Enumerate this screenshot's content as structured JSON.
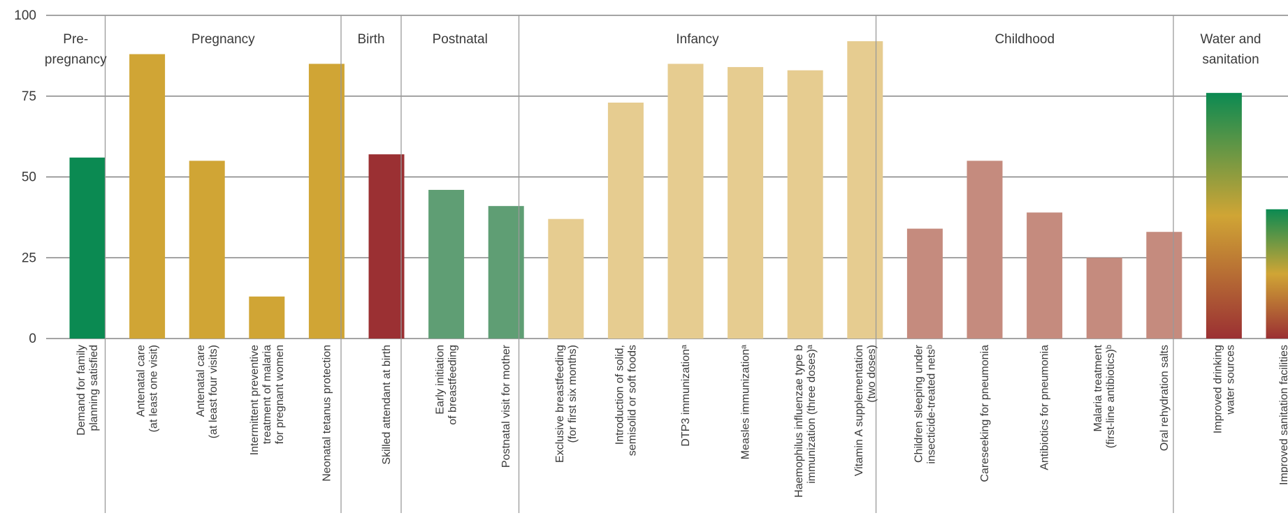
{
  "chart_data": {
    "type": "bar",
    "y_ticks": [
      "100",
      "75",
      "50",
      "25",
      "0"
    ],
    "ylim": [
      0,
      100
    ],
    "grid": true,
    "groups": [
      {
        "label_lines": [
          "Pre-",
          "pregnancy"
        ],
        "start": 0,
        "end": 0
      },
      {
        "label_lines": [
          "Pregnancy"
        ],
        "start": 1,
        "end": 4
      },
      {
        "label_lines": [
          "Birth"
        ],
        "start": 5,
        "end": 5
      },
      {
        "label_lines": [
          "Postnatal"
        ],
        "start": 6,
        "end": 7
      },
      {
        "label_lines": [
          "Infancy"
        ],
        "start": 8,
        "end": 13
      },
      {
        "label_lines": [
          "Childhood"
        ],
        "start": 14,
        "end": 18
      },
      {
        "label_lines": [
          "Water and",
          "sanitation"
        ],
        "start": 19,
        "end": 20
      }
    ],
    "categories": [
      {
        "lines": [
          "Demand for family",
          "planning satisfied"
        ],
        "value": 56,
        "color": "#0b8a52"
      },
      {
        "lines": [
          "Antenatal care",
          "(at least one visit)"
        ],
        "value": 88,
        "color": "#d0a535"
      },
      {
        "lines": [
          "Antenatal care",
          "(at least four visits)"
        ],
        "value": 55,
        "color": "#d0a535"
      },
      {
        "lines": [
          "Intermittent preventive",
          "treatment of malaria",
          "for pregnant women"
        ],
        "value": 13,
        "color": "#d0a535"
      },
      {
        "lines": [
          "Neonatal tetanus protection"
        ],
        "value": 85,
        "color": "#d0a535"
      },
      {
        "lines": [
          "Skilled attendant at birth"
        ],
        "value": 57,
        "color": "#9b3033"
      },
      {
        "lines": [
          "Early initiation",
          "of breastfeeding"
        ],
        "value": 46,
        "color": "#5f9e74"
      },
      {
        "lines": [
          "Postnatal visit for mother"
        ],
        "value": 41,
        "color": "#5f9e74"
      },
      {
        "lines": [
          "Exclusive breastfeeding",
          "(for first six months)"
        ],
        "value": 37,
        "color": "#e6cc90"
      },
      {
        "lines": [
          "Introduction of solid,",
          "semisolid or soft foods"
        ],
        "value": 73,
        "color": "#e6cc90"
      },
      {
        "lines": [
          "DTP3 immunizationᵃ"
        ],
        "value": 85,
        "color": "#e6cc90"
      },
      {
        "lines": [
          "Measles immunizationᵃ"
        ],
        "value": 84,
        "color": "#e6cc90"
      },
      {
        "lines": [
          "Haemophilus influenzae type b",
          "immunization (three doses)ᵃ"
        ],
        "value": 83,
        "color": "#e6cc90"
      },
      {
        "lines": [
          "Vitamin A supplementation",
          "(two doses)"
        ],
        "value": 92,
        "color": "#e6cc90"
      },
      {
        "lines": [
          "Children sleeping under",
          "insecticide-treated netsᵇ"
        ],
        "value": 34,
        "color": "#c58b7e"
      },
      {
        "lines": [
          "Careseeking for pneumonia"
        ],
        "value": 55,
        "color": "#c58b7e"
      },
      {
        "lines": [
          "Antibiotics for pneumonia"
        ],
        "value": 39,
        "color": "#c58b7e"
      },
      {
        "lines": [
          "Malaria treatment",
          "(first-line antibiotics)ᵇ"
        ],
        "value": 25,
        "color": "#c58b7e"
      },
      {
        "lines": [
          "Oral rehydration salts"
        ],
        "value": 33,
        "color": "#c58b7e"
      },
      {
        "lines": [
          "Improved drinking",
          "water sources"
        ],
        "value": 76,
        "color": "gradient"
      },
      {
        "lines": [
          "Improved sanitation facilities"
        ],
        "value": 40,
        "color": "gradient"
      }
    ],
    "gradient_colors": [
      "#0b8a52",
      "#d0a535",
      "#9b3033"
    ]
  }
}
